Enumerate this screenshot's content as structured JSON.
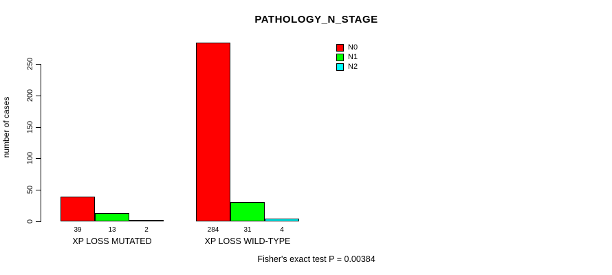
{
  "chart_data": {
    "type": "bar",
    "title": "PATHOLOGY_N_STAGE",
    "ylabel": "number of cases",
    "ylim": [
      0,
      250
    ],
    "yticks": [
      0,
      50,
      100,
      150,
      200,
      250
    ],
    "grid": false,
    "legend_position": "top-right",
    "bar_border_color": "#000000",
    "series": [
      {
        "name": "N0",
        "color": "#ff0000"
      },
      {
        "name": "N1",
        "color": "#00ff00"
      },
      {
        "name": "N2",
        "color": "#00ffff"
      }
    ],
    "groups": [
      {
        "label": "XP LOSS MUTATED",
        "values": [
          39,
          13,
          2
        ]
      },
      {
        "label": "XP LOSS WILD-TYPE",
        "values": [
          284,
          31,
          4
        ]
      }
    ],
    "caption": "Fisher's exact test P = 0.00384"
  }
}
